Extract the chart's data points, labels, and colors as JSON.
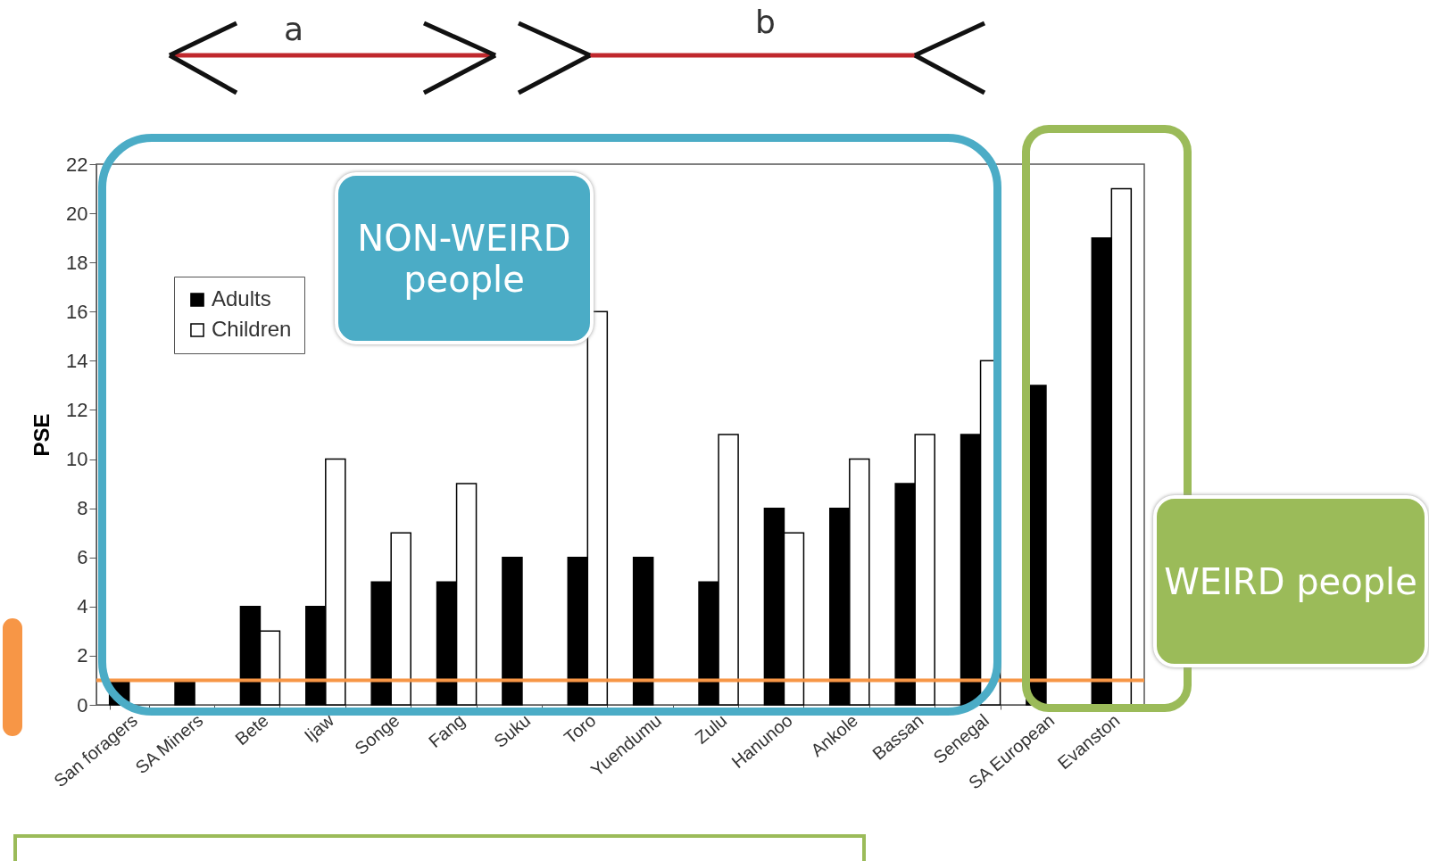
{
  "chart_data": {
    "type": "bar",
    "ylabel": "PSE",
    "categories": [
      "San foragers",
      "SA Miners",
      "Bete",
      "Ijaw",
      "Songe",
      "Fang",
      "Suku",
      "Toro",
      "Yuendumu",
      "Zulu",
      "Hanunoo",
      "Ankole",
      "Bassan",
      "Senegal",
      "SA European",
      "Evanston"
    ],
    "series": [
      {
        "name": "Adults",
        "color": "#000000",
        "values": [
          1,
          1,
          4,
          4,
          5,
          5,
          6,
          6,
          6,
          5,
          8,
          8,
          9,
          11,
          13,
          19
        ]
      },
      {
        "name": "Children",
        "color": "#ffffff",
        "values": [
          null,
          null,
          3,
          10,
          7,
          9,
          null,
          16,
          null,
          11,
          7,
          10,
          11,
          14,
          null,
          21
        ]
      }
    ],
    "ylim": [
      0,
      22
    ],
    "yticks": [
      0,
      2,
      4,
      6,
      8,
      10,
      12,
      14,
      16,
      18,
      20,
      22
    ],
    "grid": false,
    "legend": "top left",
    "ref_lines": [
      {
        "axis": "y",
        "value": 1,
        "color": "#f79646"
      }
    ],
    "annotations": [
      "a",
      "b",
      "NON-WEIRD people",
      "WEIRD people"
    ]
  }
}
